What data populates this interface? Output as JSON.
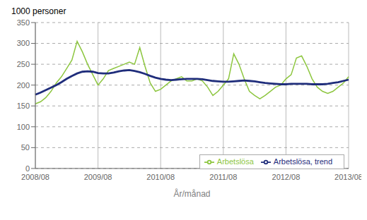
{
  "chart_data": {
    "type": "line",
    "xlabel": "År/månad",
    "ylabel": "1000 personer",
    "categories": [
      "2008/08",
      null,
      null,
      null,
      null,
      null,
      null,
      null,
      null,
      null,
      null,
      null,
      "2009/08",
      null,
      null,
      null,
      null,
      null,
      null,
      null,
      null,
      null,
      null,
      null,
      "2010/08",
      null,
      null,
      null,
      null,
      null,
      null,
      null,
      null,
      null,
      null,
      null,
      "2011/08",
      null,
      null,
      null,
      null,
      null,
      null,
      null,
      null,
      null,
      null,
      null,
      "2012/08",
      null,
      null,
      null,
      null,
      null,
      null,
      null,
      null,
      null,
      null,
      null,
      "2013/08"
    ],
    "series": [
      {
        "name": "Arbetslösa",
        "color": "#8dc63f",
        "values": [
          155,
          160,
          170,
          185,
          205,
          220,
          240,
          260,
          305,
          280,
          250,
          225,
          200,
          215,
          235,
          240,
          245,
          250,
          255,
          250,
          290,
          245,
          205,
          185,
          190,
          200,
          210,
          215,
          220,
          210,
          210,
          215,
          210,
          195,
          175,
          185,
          200,
          215,
          275,
          250,
          215,
          185,
          175,
          167,
          175,
          185,
          195,
          200,
          215,
          225,
          265,
          270,
          245,
          215,
          195,
          185,
          180,
          185,
          195,
          205,
          220
        ]
      },
      {
        "name": "Arbetslösa, trend",
        "color": "#1f2d7b",
        "values": [
          177,
          182,
          188,
          194,
          200,
          207,
          215,
          222,
          228,
          232,
          233,
          232,
          229,
          228,
          228,
          230,
          233,
          235,
          236,
          234,
          231,
          227,
          222,
          218,
          215,
          213,
          212,
          213,
          214,
          215,
          215,
          215,
          214,
          212,
          210,
          209,
          208,
          208,
          209,
          210,
          211,
          210,
          209,
          207,
          205,
          204,
          203,
          202,
          202,
          203,
          203,
          203,
          203,
          202,
          202,
          202,
          203,
          205,
          207,
          210,
          213
        ]
      }
    ],
    "ylim": [
      0,
      350
    ],
    "yticks": [
      0,
      50,
      100,
      150,
      200,
      250,
      300,
      350
    ],
    "grid": true,
    "legend": "lower right"
  }
}
